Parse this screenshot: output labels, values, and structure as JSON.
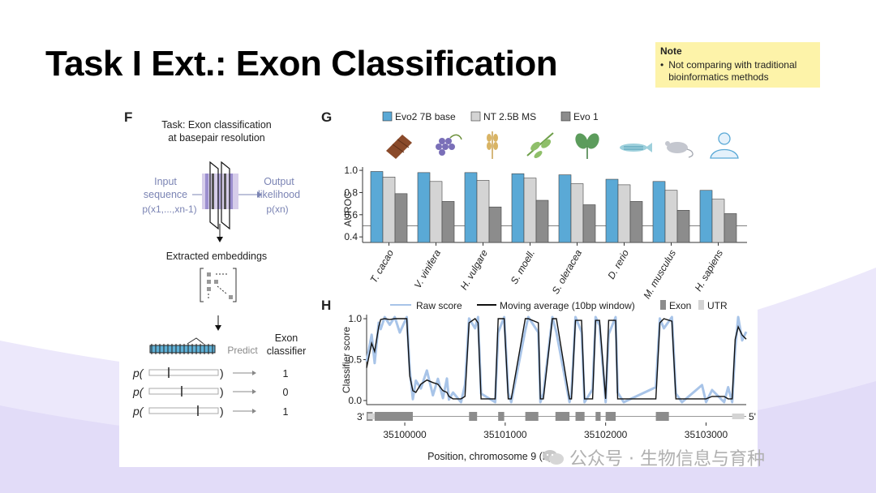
{
  "slide": {
    "title": "Task I Ext.: Exon Classification",
    "note": {
      "heading": "Note",
      "bullet": "Not comparing with traditional bioinformatics methods"
    }
  },
  "panel_f": {
    "label": "F",
    "task_line1": "Task: Exon classification",
    "task_line2": "at basepair resolution",
    "input_line1": "Input",
    "input_line2": "sequence",
    "input_formula": "p(x1,...,xn-1)",
    "output_line1": "Output",
    "output_line2": "likelihood",
    "output_formula": "p(xn)",
    "embeddings_label": "Extracted embeddings",
    "predict_label": "Predict",
    "classifier_line1": "Exon",
    "classifier_line2": "classifier",
    "rows": [
      {
        "p": "p(",
        "value": "1"
      },
      {
        "p": "p(",
        "value": "0"
      },
      {
        "p": "p(",
        "value": "1"
      }
    ]
  },
  "panel_g": {
    "label": "G"
  },
  "panel_h": {
    "label": "H"
  },
  "colors": {
    "evo2": "#5aa9d6",
    "nt": "#d4d4d4",
    "evo1": "#8c8c8c",
    "raw": "#a8c4e8",
    "avg": "#111111",
    "note_bg": "#fdf3a9"
  },
  "chart_data": [
    {
      "type": "bar",
      "categories": [
        "T. cacao",
        "V. vinifera",
        "H. vulgare",
        "S. moell.",
        "S. oleracea",
        "D. rerio",
        "M. musculus",
        "H. sapiens"
      ],
      "series": [
        {
          "name": "Evo2 7B base",
          "values": [
            0.99,
            0.98,
            0.98,
            0.97,
            0.96,
            0.92,
            0.9,
            0.82
          ]
        },
        {
          "name": "NT 2.5B MS",
          "values": [
            0.94,
            0.9,
            0.91,
            0.93,
            0.88,
            0.87,
            0.82,
            0.74
          ]
        },
        {
          "name": "Evo 1",
          "values": [
            0.79,
            0.72,
            0.67,
            0.73,
            0.69,
            0.72,
            0.64,
            0.61
          ]
        }
      ],
      "ylabel": "AUROC",
      "yticks": [
        "0.4",
        "0.6",
        "0.8",
        "1.0"
      ],
      "ylim": [
        0.35,
        1.03
      ],
      "reference_line": 0.5,
      "legend_position": "top"
    },
    {
      "type": "line",
      "xlabel": "Position, chromosome 9 (bp)",
      "ylabel": "Classifier score",
      "xticks": [
        "35100000",
        "35101000",
        "35102000",
        "35103000"
      ],
      "xtick_values": [
        35100000,
        35101000,
        35102000,
        35103000
      ],
      "yticks": [
        "0.0",
        "0.5",
        "1.0"
      ],
      "xlim": [
        35099620,
        35103400
      ],
      "ylim": [
        -0.05,
        1.05
      ],
      "legend": [
        "Raw score",
        "Moving average (10bp window)",
        "Exon",
        "UTR"
      ],
      "legend_position": "top",
      "strand_labels": [
        "3'",
        "5'"
      ],
      "series": [
        {
          "name": "Moving average (10bp window)",
          "x": [
            35099620,
            35099670,
            35099700,
            35099740,
            35099760,
            35099800,
            35099850,
            35099900,
            35099950,
            35100020,
            35100050,
            35100080,
            35100110,
            35100160,
            35100220,
            35100280,
            35100330,
            35100380,
            35100420,
            35100440,
            35100480,
            35100560,
            35100600,
            35100640,
            35100700,
            35100730,
            35100760,
            35100900,
            35100930,
            35100990,
            35101030,
            35101060,
            35101200,
            35101230,
            35101330,
            35101350,
            35101380,
            35101470,
            35101510,
            35101640,
            35101660,
            35101700,
            35101760,
            35101790,
            35101870,
            35101900,
            35101940,
            35102000,
            35102030,
            35102100,
            35102120,
            35102180,
            35102500,
            35102540,
            35102580,
            35102660,
            35102700,
            35102760,
            35102960,
            35103000,
            35103060,
            35103180,
            35103220,
            35103260,
            35103290,
            35103320,
            35103360,
            35103400
          ],
          "y": [
            0.4,
            0.7,
            0.6,
            0.9,
            0.99,
            1.0,
            0.99,
            1.0,
            1.0,
            1.0,
            0.3,
            0.12,
            0.1,
            0.2,
            0.25,
            0.22,
            0.2,
            0.12,
            0.1,
            0.05,
            0.02,
            0.02,
            0.05,
            0.95,
            1.0,
            0.95,
            0.02,
            0.02,
            1.0,
            1.0,
            0.02,
            0.02,
            1.0,
            1.0,
            0.95,
            0.02,
            0.02,
            1.0,
            1.0,
            0.02,
            0.02,
            0.98,
            0.98,
            0.02,
            0.02,
            0.98,
            0.98,
            0.02,
            0.98,
            0.98,
            0.02,
            0.02,
            0.02,
            0.95,
            1.0,
            0.97,
            0.02,
            0.02,
            0.02,
            0.02,
            0.05,
            0.05,
            0.02,
            0.02,
            0.75,
            0.9,
            0.8,
            0.75
          ]
        }
      ],
      "exons": [
        [
          35099620,
          35099680
        ],
        [
          35099700,
          35100080
        ],
        [
          35100640,
          35100720
        ],
        [
          35100930,
          35100990
        ],
        [
          35101200,
          35101330
        ],
        [
          35101500,
          35101640
        ],
        [
          35101700,
          35101790
        ],
        [
          35101900,
          35101950
        ],
        [
          35102000,
          35102100
        ],
        [
          35102500,
          35102630
        ]
      ],
      "utrs": [
        [
          35099630,
          35099700
        ],
        [
          35103260,
          35103380
        ]
      ]
    }
  ]
}
